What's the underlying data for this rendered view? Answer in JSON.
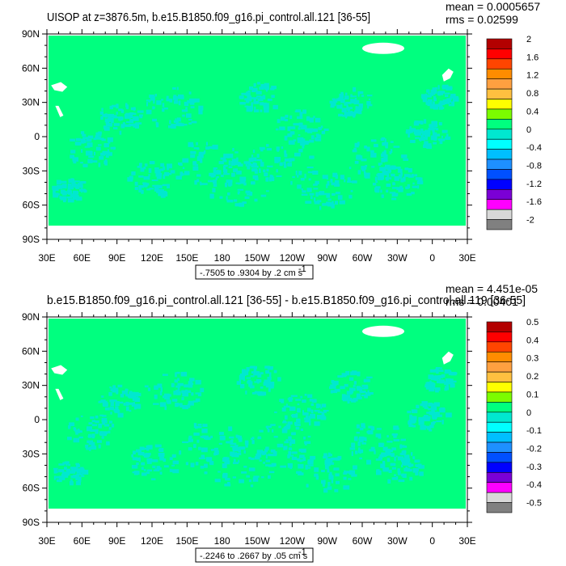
{
  "chart_data": [
    {
      "type": "heatmap",
      "title": "UISOP at z=3876.5m, b.e15.B1850.f09_g16.pi_control.all.121 [36-55]",
      "stats": {
        "mean": "mean = 0.0005657",
        "rms": "rms = 0.02599"
      },
      "info": "-.7505 to .9304 by .2 cm s",
      "info_sup": "-1",
      "lat_ticks": [
        "90N",
        "60N",
        "30N",
        "0",
        "30S",
        "60S",
        "90S"
      ],
      "lon_ticks": [
        "30E",
        "60E",
        "90E",
        "120E",
        "150E",
        "180",
        "150W",
        "120W",
        "90W",
        "60W",
        "30W",
        "0",
        "30E"
      ],
      "colorbar_labels": [
        "2",
        "1.6",
        "1.2",
        "0.8",
        "0.4",
        "0",
        "-0.4",
        "-0.8",
        "-1.2",
        "-1.6",
        "-2"
      ],
      "colorbar_colors": [
        "#b30000",
        "#ff0000",
        "#ff4500",
        "#ff8c00",
        "#ffa040",
        "#ffc040",
        "#ffff00",
        "#7cfc00",
        "#00ff7f",
        "#00e8d0",
        "#00ffff",
        "#00bfff",
        "#1e90ff",
        "#0050ff",
        "#0000ff",
        "#7b00d6",
        "#ff00ff",
        "#d8d8d8",
        "#808080"
      ],
      "dominant_color": "#00ff7f",
      "secondary_color": "#00e8d0"
    },
    {
      "type": "heatmap",
      "title": "b.e15.B1850.f09_g16.pi_control.all.121 [36-55] - b.e15.B1850.f09_g16.pi_control.all.119 [36-55]",
      "stats": {
        "mean": "mean = 4.451e-05",
        "rms": "rms = 0.00401"
      },
      "info": "-.2246 to .2667 by .05 cm s",
      "info_sup": "-1",
      "lat_ticks": [
        "90N",
        "60N",
        "30N",
        "0",
        "30S",
        "60S",
        "90S"
      ],
      "lon_ticks": [
        "30E",
        "60E",
        "90E",
        "120E",
        "150E",
        "180",
        "150W",
        "120W",
        "90W",
        "60W",
        "30W",
        "0",
        "30E"
      ],
      "colorbar_labels": [
        "0.5",
        "0.4",
        "0.3",
        "0.2",
        "0.1",
        "0",
        "-0.1",
        "-0.2",
        "-0.3",
        "-0.4",
        "-0.5"
      ],
      "colorbar_colors": [
        "#b30000",
        "#ff0000",
        "#ff4500",
        "#ff8c00",
        "#ffa040",
        "#ffc040",
        "#ffff00",
        "#7cfc00",
        "#00ff7f",
        "#00e8d0",
        "#00ffff",
        "#00bfff",
        "#1e90ff",
        "#0050ff",
        "#0000ff",
        "#7b00d6",
        "#ff00ff",
        "#d8d8d8",
        "#808080"
      ],
      "dominant_color": "#00ff7f",
      "secondary_color": "#00e8d0"
    }
  ]
}
